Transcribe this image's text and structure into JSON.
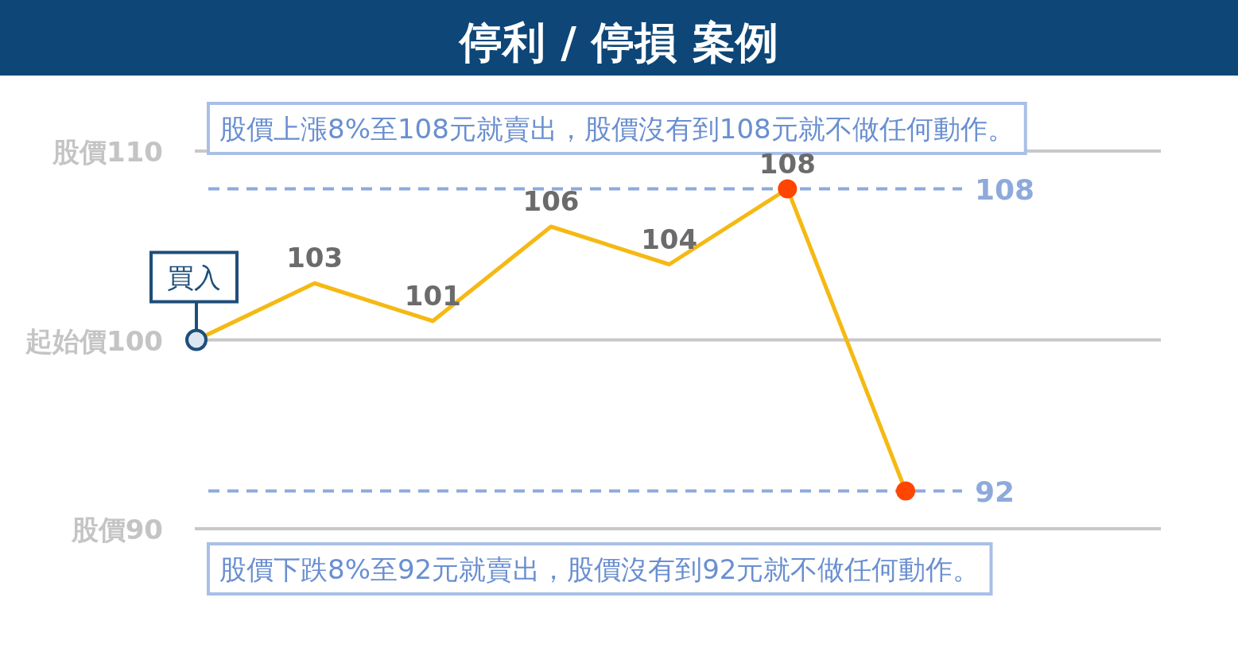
{
  "chart_data": {
    "type": "line",
    "title": "停利 / 停損 案例",
    "categories": [
      null,
      null,
      null,
      null,
      null,
      null,
      null
    ],
    "series": [
      {
        "color": "#f5b914",
        "values": [
          100,
          103,
          101,
          106,
          104,
          108,
          92
        ],
        "value_labels": [
          null,
          "103",
          "101",
          "106",
          "104",
          "108",
          null
        ],
        "colors": [
          "#dce6f2",
          null,
          null,
          null,
          null,
          "#ff4500",
          "#ff4500"
        ]
      }
    ],
    "ylim": [
      90,
      110
    ],
    "yticks": [
      90,
      100,
      110
    ],
    "grid": "y",
    "ref_lines": [
      {
        "axis": "y",
        "value": 108,
        "label": "108",
        "color": "#8eaadb",
        "line_style": "dashed"
      },
      {
        "axis": "y",
        "value": 92,
        "label": "92",
        "color": "#8eaadb",
        "line_style": "dashed"
      }
    ],
    "annotations": [
      "股價上漲8%至108元就賣出，股價沒有到108元就不做任何動作。",
      "股價下跌8%至92元就賣出，股價沒有到92元就不做任何動作。",
      "買入",
      "股價",
      "起始價",
      "股價"
    ]
  }
}
